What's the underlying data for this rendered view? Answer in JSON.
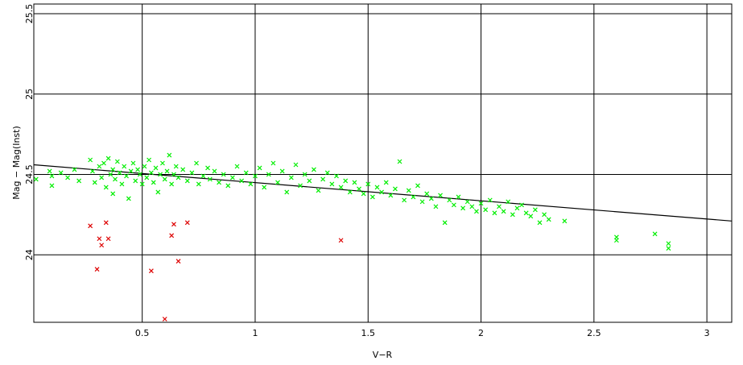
{
  "chart_data": {
    "type": "scatter",
    "title": "",
    "xlabel": "V−R",
    "ylabel": "Mag − Mag(Inst)",
    "xlim": [
      0.02,
      3.11
    ],
    "ylim": [
      23.58,
      25.56
    ],
    "x_ticks": [
      0.5,
      1,
      1.5,
      2,
      2.5,
      3
    ],
    "x_tick_labels": [
      "0.5",
      "1",
      "1.5",
      "2",
      "2.5",
      "3"
    ],
    "y_ticks": [
      24,
      24.5,
      25,
      25.5
    ],
    "y_tick_labels": [
      "24",
      "24.5",
      "25",
      "25.5"
    ],
    "grid": true,
    "legend": "none",
    "colors": {
      "accepted": "#00ee00",
      "rejected": "#dd0000",
      "fit": "#000000",
      "grid": "#000000"
    },
    "marker": "x",
    "fit_line": {
      "x": [
        0.02,
        3.11
      ],
      "y": [
        24.56,
        24.21
      ]
    },
    "rejected_points": [
      [
        0.27,
        24.18
      ],
      [
        0.3,
        23.91
      ],
      [
        0.31,
        24.1
      ],
      [
        0.32,
        24.06
      ],
      [
        0.34,
        24.2
      ],
      [
        0.35,
        24.1
      ],
      [
        0.54,
        23.9
      ],
      [
        0.6,
        23.6
      ],
      [
        0.63,
        24.12
      ],
      [
        0.64,
        24.19
      ],
      [
        0.66,
        23.96
      ],
      [
        0.7,
        24.2
      ],
      [
        1.38,
        24.09
      ]
    ],
    "accepted_points": [
      [
        0.03,
        24.47
      ],
      [
        0.09,
        24.52
      ],
      [
        0.1,
        24.49
      ],
      [
        0.1,
        24.43
      ],
      [
        0.14,
        24.51
      ],
      [
        0.17,
        24.48
      ],
      [
        0.2,
        24.53
      ],
      [
        0.22,
        24.46
      ],
      [
        0.27,
        24.59
      ],
      [
        0.28,
        24.52
      ],
      [
        0.29,
        24.45
      ],
      [
        0.31,
        24.55
      ],
      [
        0.32,
        24.48
      ],
      [
        0.33,
        24.57
      ],
      [
        0.34,
        24.42
      ],
      [
        0.35,
        24.6
      ],
      [
        0.36,
        24.5
      ],
      [
        0.37,
        24.38
      ],
      [
        0.37,
        24.53
      ],
      [
        0.38,
        24.47
      ],
      [
        0.39,
        24.58
      ],
      [
        0.4,
        24.51
      ],
      [
        0.41,
        24.44
      ],
      [
        0.42,
        24.55
      ],
      [
        0.43,
        24.49
      ],
      [
        0.44,
        24.35
      ],
      [
        0.45,
        24.52
      ],
      [
        0.46,
        24.57
      ],
      [
        0.47,
        24.46
      ],
      [
        0.48,
        24.53
      ],
      [
        0.49,
        24.5
      ],
      [
        0.5,
        24.44
      ],
      [
        0.51,
        24.55
      ],
      [
        0.52,
        24.48
      ],
      [
        0.53,
        24.59
      ],
      [
        0.54,
        24.51
      ],
      [
        0.55,
        24.45
      ],
      [
        0.56,
        24.54
      ],
      [
        0.57,
        24.39
      ],
      [
        0.58,
        24.5
      ],
      [
        0.59,
        24.57
      ],
      [
        0.6,
        24.47
      ],
      [
        0.61,
        24.52
      ],
      [
        0.62,
        24.62
      ],
      [
        0.63,
        24.44
      ],
      [
        0.64,
        24.5
      ],
      [
        0.65,
        24.55
      ],
      [
        0.66,
        24.48
      ],
      [
        0.68,
        24.53
      ],
      [
        0.7,
        24.46
      ],
      [
        0.72,
        24.51
      ],
      [
        0.74,
        24.57
      ],
      [
        0.75,
        24.44
      ],
      [
        0.77,
        24.49
      ],
      [
        0.79,
        24.54
      ],
      [
        0.8,
        24.47
      ],
      [
        0.82,
        24.52
      ],
      [
        0.84,
        24.45
      ],
      [
        0.86,
        24.5
      ],
      [
        0.88,
        24.43
      ],
      [
        0.9,
        24.48
      ],
      [
        0.92,
        24.55
      ],
      [
        0.94,
        24.46
      ],
      [
        0.96,
        24.51
      ],
      [
        0.98,
        24.44
      ],
      [
        1.0,
        24.49
      ],
      [
        1.02,
        24.54
      ],
      [
        1.04,
        24.42
      ],
      [
        1.06,
        24.5
      ],
      [
        1.08,
        24.57
      ],
      [
        1.1,
        24.45
      ],
      [
        1.12,
        24.52
      ],
      [
        1.14,
        24.39
      ],
      [
        1.16,
        24.48
      ],
      [
        1.18,
        24.56
      ],
      [
        1.2,
        24.43
      ],
      [
        1.22,
        24.5
      ],
      [
        1.24,
        24.46
      ],
      [
        1.26,
        24.53
      ],
      [
        1.28,
        24.4
      ],
      [
        1.3,
        24.47
      ],
      [
        1.32,
        24.51
      ],
      [
        1.34,
        24.44
      ],
      [
        1.36,
        24.49
      ],
      [
        1.38,
        24.42
      ],
      [
        1.4,
        24.46
      ],
      [
        1.42,
        24.39
      ],
      [
        1.44,
        24.45
      ],
      [
        1.46,
        24.41
      ],
      [
        1.48,
        24.38
      ],
      [
        1.5,
        24.44
      ],
      [
        1.52,
        24.36
      ],
      [
        1.54,
        24.42
      ],
      [
        1.56,
        24.39
      ],
      [
        1.58,
        24.45
      ],
      [
        1.6,
        24.37
      ],
      [
        1.62,
        24.41
      ],
      [
        1.64,
        24.58
      ],
      [
        1.66,
        24.34
      ],
      [
        1.68,
        24.4
      ],
      [
        1.7,
        24.36
      ],
      [
        1.72,
        24.43
      ],
      [
        1.74,
        24.33
      ],
      [
        1.76,
        24.38
      ],
      [
        1.78,
        24.35
      ],
      [
        1.8,
        24.3
      ],
      [
        1.82,
        24.37
      ],
      [
        1.84,
        24.2
      ],
      [
        1.86,
        24.34
      ],
      [
        1.88,
        24.31
      ],
      [
        1.9,
        24.36
      ],
      [
        1.92,
        24.29
      ],
      [
        1.94,
        24.33
      ],
      [
        1.96,
        24.3
      ],
      [
        1.98,
        24.27
      ],
      [
        2.0,
        24.32
      ],
      [
        2.02,
        24.28
      ],
      [
        2.04,
        24.34
      ],
      [
        2.06,
        24.26
      ],
      [
        2.08,
        24.3
      ],
      [
        2.1,
        24.27
      ],
      [
        2.12,
        24.33
      ],
      [
        2.14,
        24.25
      ],
      [
        2.16,
        24.29
      ],
      [
        2.18,
        24.31
      ],
      [
        2.2,
        24.26
      ],
      [
        2.22,
        24.24
      ],
      [
        2.24,
        24.28
      ],
      [
        2.26,
        24.2
      ],
      [
        2.28,
        24.25
      ],
      [
        2.3,
        24.22
      ],
      [
        2.37,
        24.21
      ],
      [
        2.6,
        24.11
      ],
      [
        2.6,
        24.09
      ],
      [
        2.77,
        24.13
      ],
      [
        2.83,
        24.07
      ],
      [
        2.83,
        24.04
      ]
    ]
  }
}
